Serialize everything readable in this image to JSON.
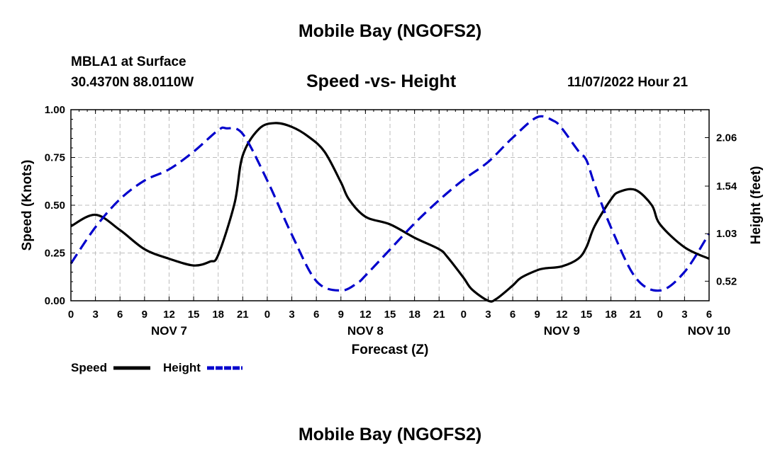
{
  "header": {
    "title": "Mobile Bay (NGOFS2)",
    "station": "MBLA1 at Surface",
    "coords": "30.4370N  88.0110W",
    "subtitle": "Speed -vs- Height",
    "timestamp": "11/07/2022 Hour 21"
  },
  "footer": {
    "title": "Mobile Bay (NGOFS2)"
  },
  "chart_data": {
    "type": "line",
    "xlabel": "Forecast (Z)",
    "ylabel": "Speed (Knots)",
    "y2label": "Height (feet)",
    "x_range_hours": [
      0,
      78
    ],
    "x_start": "NOV 7 00Z",
    "x_ticks": [
      "0",
      "3",
      "6",
      "9",
      "12",
      "15",
      "18",
      "21",
      "0",
      "3",
      "6",
      "9",
      "12",
      "15",
      "18",
      "21",
      "0",
      "3",
      "6",
      "9",
      "12",
      "15",
      "18",
      "21",
      "0",
      "3",
      "6"
    ],
    "date_labels": [
      {
        "label": "NOV 7",
        "hour": 12
      },
      {
        "label": "NOV 8",
        "hour": 36
      },
      {
        "label": "NOV 9",
        "hour": 60
      },
      {
        "label": "NOV 10",
        "hour": 78
      }
    ],
    "ylim": [
      0,
      1
    ],
    "y_ticks": [
      "0.00",
      "0.25",
      "0.50",
      "0.75",
      "1.00"
    ],
    "y2lim": [
      0.31,
      2.36
    ],
    "y2_ticks": [
      "0.52",
      "1.03",
      "1.54",
      "2.06"
    ],
    "legend": {
      "placement": "bottom-left",
      "items": [
        "Speed",
        "Height"
      ]
    },
    "series": [
      {
        "name": "Speed",
        "units": "knots",
        "color": "#000000",
        "dash": "solid",
        "x": [
          0,
          3,
          6,
          9,
          12,
          15,
          17,
          18,
          20,
          21,
          23,
          25,
          27,
          29,
          31,
          33,
          34,
          36,
          39,
          42,
          45,
          46,
          48,
          49,
          51,
          52,
          54,
          55,
          57,
          58,
          60,
          62,
          63,
          64,
          66,
          67,
          69,
          71,
          72,
          75,
          78
        ],
        "values": [
          0.39,
          0.45,
          0.37,
          0.27,
          0.22,
          0.185,
          0.205,
          0.24,
          0.51,
          0.76,
          0.9,
          0.93,
          0.91,
          0.86,
          0.78,
          0.62,
          0.53,
          0.44,
          0.4,
          0.33,
          0.27,
          0.23,
          0.12,
          0.06,
          0.0,
          0.01,
          0.08,
          0.12,
          0.16,
          0.17,
          0.18,
          0.22,
          0.28,
          0.39,
          0.53,
          0.57,
          0.58,
          0.5,
          0.4,
          0.28,
          0.22
        ]
      },
      {
        "name": "Height",
        "units": "feet",
        "color": "#0000cc",
        "dash": "dashed",
        "x": [
          0,
          3,
          6,
          9,
          12,
          15,
          18,
          19,
          21,
          24,
          27,
          30,
          33,
          35,
          36,
          39,
          42,
          45,
          48,
          51,
          54,
          57,
          59,
          60,
          62,
          63,
          64,
          66,
          69,
          72,
          75,
          78
        ],
        "values": [
          0.71,
          1.1,
          1.4,
          1.6,
          1.72,
          1.91,
          2.14,
          2.16,
          2.1,
          1.6,
          1.02,
          0.52,
          0.42,
          0.5,
          0.58,
          0.86,
          1.14,
          1.39,
          1.61,
          1.8,
          2.06,
          2.28,
          2.24,
          2.16,
          1.92,
          1.82,
          1.56,
          1.1,
          0.56,
          0.42,
          0.62,
          1.03
        ]
      }
    ]
  }
}
